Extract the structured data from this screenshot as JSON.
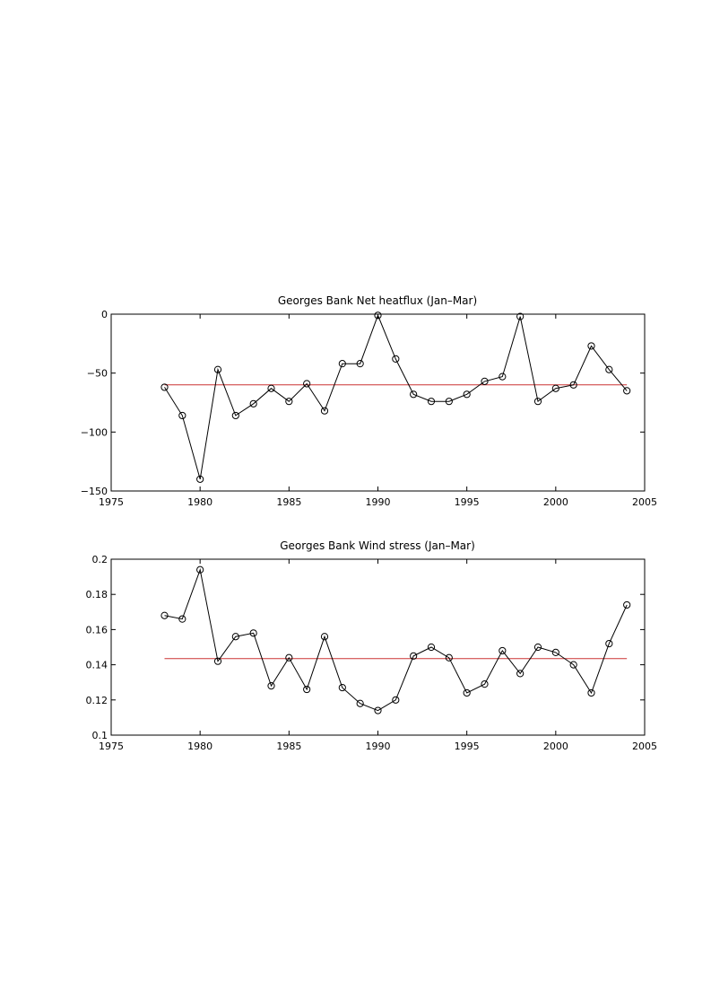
{
  "chart_data": [
    {
      "type": "line",
      "title": "Georges Bank Net heatflux (Jan–Mar)",
      "xlabel": "",
      "ylabel": "",
      "xlim": [
        1975,
        2005
      ],
      "ylim": [
        -150,
        0
      ],
      "xticks": [
        1975,
        1980,
        1985,
        1990,
        1995,
        2000,
        2005
      ],
      "yticks": [
        -150,
        -100,
        -50,
        0
      ],
      "xtick_labels": [
        "1975",
        "1980",
        "1985",
        "1990",
        "1995",
        "2000",
        "2005"
      ],
      "ytick_labels": [
        "−150",
        "−100",
        "−50",
        "0"
      ],
      "grid": false,
      "x": [
        1978,
        1979,
        1980,
        1981,
        1982,
        1983,
        1984,
        1985,
        1986,
        1987,
        1988,
        1989,
        1990,
        1991,
        1992,
        1993,
        1994,
        1995,
        1996,
        1997,
        1998,
        1999,
        2000,
        2001,
        2002,
        2003,
        2004
      ],
      "series": [
        {
          "values": [
            -62,
            -86,
            -140,
            -47,
            -86,
            -76,
            -63,
            -74,
            -59,
            -82,
            -42,
            -42,
            -1,
            -38,
            -68,
            -74,
            -74,
            -68,
            -57,
            -53,
            -2,
            -74,
            -63,
            -60,
            -27,
            -47,
            -65
          ],
          "color": "#000000",
          "marker": "circle"
        }
      ],
      "mean": {
        "value": -60,
        "x_range": [
          1978,
          2004
        ],
        "color": "#cc3333"
      }
    },
    {
      "type": "line",
      "title": "Georges Bank Wind stress (Jan–Mar)",
      "xlabel": "",
      "ylabel": "",
      "xlim": [
        1975,
        2005
      ],
      "ylim": [
        0.1,
        0.2
      ],
      "xticks": [
        1975,
        1980,
        1985,
        1990,
        1995,
        2000,
        2005
      ],
      "yticks": [
        0.1,
        0.12,
        0.14,
        0.16,
        0.18,
        0.2
      ],
      "xtick_labels": [
        "1975",
        "1980",
        "1985",
        "1990",
        "1995",
        "2000",
        "2005"
      ],
      "ytick_labels": [
        "0.1",
        "0.12",
        "0.14",
        "0.16",
        "0.18",
        "0.2"
      ],
      "grid": false,
      "x": [
        1978,
        1979,
        1980,
        1981,
        1982,
        1983,
        1984,
        1985,
        1986,
        1987,
        1988,
        1989,
        1990,
        1991,
        1992,
        1993,
        1994,
        1995,
        1996,
        1997,
        1998,
        1999,
        2000,
        2001,
        2002,
        2003,
        2004
      ],
      "series": [
        {
          "values": [
            0.168,
            0.166,
            0.194,
            0.142,
            0.156,
            0.158,
            0.128,
            0.144,
            0.126,
            0.156,
            0.127,
            0.118,
            0.114,
            0.12,
            0.145,
            0.15,
            0.144,
            0.124,
            0.129,
            0.148,
            0.135,
            0.15,
            0.147,
            0.14,
            0.124,
            0.152,
            0.174
          ],
          "color": "#000000",
          "marker": "circle"
        }
      ],
      "mean": {
        "value": 0.1435,
        "x_range": [
          1978,
          2004
        ],
        "color": "#cc3333"
      }
    }
  ]
}
